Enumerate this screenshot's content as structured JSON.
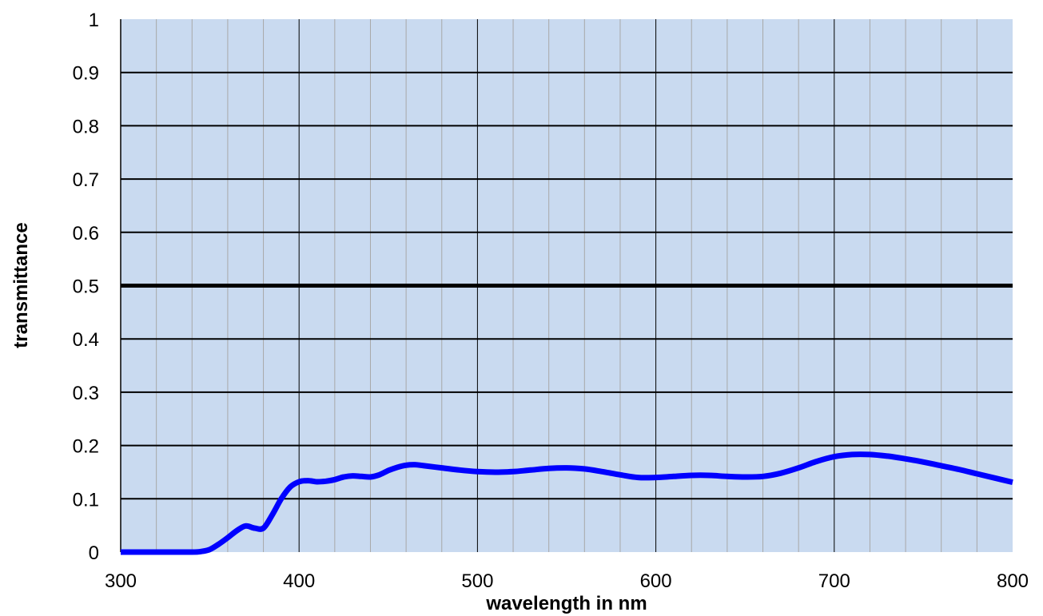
{
  "chart_data": {
    "type": "line",
    "xlabel": "wavelength in nm",
    "ylabel": "transmittance",
    "xlim": [
      300,
      800
    ],
    "ylim": [
      0,
      1
    ],
    "x_ticks": [
      300,
      400,
      500,
      600,
      700,
      800
    ],
    "y_ticks": [
      0,
      0.1,
      0.2,
      0.3,
      0.4,
      0.5,
      0.6,
      0.7,
      0.8,
      0.9,
      1
    ],
    "x_tick_labels": [
      "300",
      "400",
      "500",
      "600",
      "700",
      "800"
    ],
    "y_tick_labels": [
      "0",
      "0.1",
      "0.2",
      "0.3",
      "0.4",
      "0.5",
      "0.6",
      "0.7",
      "0.8",
      "0.9",
      "1"
    ],
    "x_minor_step": 20,
    "reference_line": 0.5,
    "grid": true,
    "colors": {
      "plot_background": "#c9daf0",
      "series": "#0000ff",
      "major_grid": "#000000",
      "minor_grid": "#a8a8a8"
    },
    "series": [
      {
        "x": [
          300,
          320,
          340,
          345,
          350,
          355,
          360,
          365,
          370,
          375,
          380,
          385,
          390,
          395,
          400,
          405,
          410,
          415,
          420,
          425,
          430,
          435,
          440,
          445,
          450,
          455,
          460,
          465,
          470,
          480,
          490,
          500,
          510,
          520,
          530,
          540,
          550,
          560,
          570,
          580,
          590,
          600,
          610,
          620,
          630,
          640,
          650,
          660,
          670,
          680,
          690,
          700,
          710,
          720,
          730,
          740,
          750,
          760,
          770,
          780,
          790,
          800
        ],
        "y": [
          0,
          0,
          0,
          0.001,
          0.005,
          0.015,
          0.027,
          0.04,
          0.049,
          0.045,
          0.045,
          0.07,
          0.1,
          0.122,
          0.132,
          0.134,
          0.132,
          0.133,
          0.136,
          0.141,
          0.143,
          0.142,
          0.141,
          0.145,
          0.153,
          0.159,
          0.163,
          0.164,
          0.162,
          0.158,
          0.154,
          0.151,
          0.15,
          0.151,
          0.154,
          0.157,
          0.158,
          0.156,
          0.151,
          0.145,
          0.14,
          0.14,
          0.142,
          0.144,
          0.144,
          0.142,
          0.141,
          0.142,
          0.148,
          0.158,
          0.17,
          0.179,
          0.183,
          0.183,
          0.18,
          0.175,
          0.169,
          0.162,
          0.155,
          0.147,
          0.139,
          0.131
        ]
      }
    ]
  }
}
